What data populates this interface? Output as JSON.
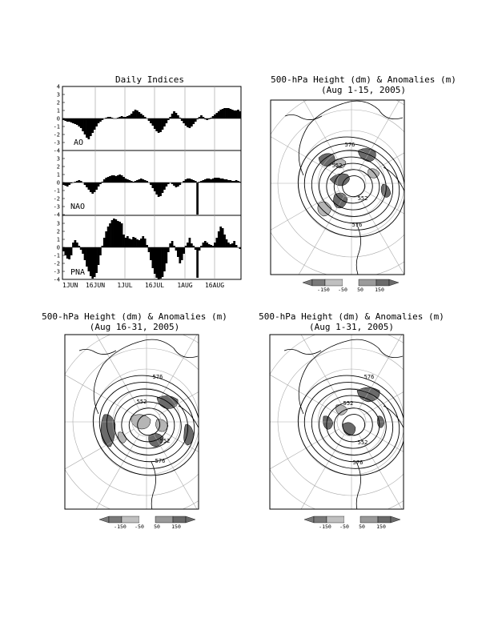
{
  "indices_panel": {
    "title": "Daily Indices",
    "y_ticks": [
      "4",
      "3",
      "2",
      "1",
      "0",
      "-1",
      "-2",
      "-3",
      "-4"
    ],
    "x_ticks": [
      "1JUN",
      "16JUN",
      "1JUL",
      "16JUL",
      "1AUG",
      "16AUG"
    ]
  },
  "maps": [
    {
      "title_line1": "500-hPa Height (dm) & Anomalies (m)",
      "title_line2": "(Aug 1-15, 2005)",
      "contour_labels": [
        "576",
        "552",
        "552",
        "576"
      ],
      "legend_labels": [
        "-150",
        "-50",
        "50",
        "150"
      ]
    },
    {
      "title_line1": "500-hPa Height (dm) & Anomalies (m)",
      "title_line2": "(Aug 16-31, 2005)",
      "contour_labels": [
        "576",
        "552",
        "552",
        "576"
      ],
      "legend_labels": [
        "-150",
        "-50",
        "50",
        "150"
      ]
    },
    {
      "title_line1": "500-hPa Height (dm) & Anomalies (m)",
      "title_line2": "(Aug 1-31, 2005)",
      "contour_labels": [
        "576",
        "552",
        "552",
        "576"
      ],
      "legend_labels": [
        "-150",
        "-50",
        "50",
        "150"
      ]
    }
  ],
  "chart_data": [
    {
      "type": "bar",
      "title": "Daily Indices",
      "series_label": "AO",
      "x_start": "1JUN",
      "x_end": "31AUG",
      "ylim": [
        -4,
        4
      ],
      "values": [
        -0.2,
        -0.3,
        -0.4,
        -0.4,
        -0.5,
        -0.6,
        -0.7,
        -0.8,
        -1.0,
        -1.2,
        -1.6,
        -2.0,
        -2.4,
        -2.6,
        -2.2,
        -1.8,
        -1.4,
        -1.0,
        -0.6,
        -0.4,
        -0.2,
        0.0,
        0.1,
        0.2,
        0.2,
        0.1,
        0.0,
        0.0,
        0.1,
        0.2,
        0.3,
        0.2,
        0.2,
        0.3,
        0.4,
        0.6,
        0.9,
        1.1,
        1.0,
        0.8,
        0.6,
        0.4,
        0.2,
        0.0,
        -0.3,
        -0.6,
        -0.9,
        -1.3,
        -1.6,
        -1.8,
        -1.7,
        -1.4,
        -1.0,
        -0.6,
        -0.2,
        0.2,
        0.6,
        0.9,
        0.7,
        0.4,
        0.1,
        -0.3,
        -0.6,
        -0.9,
        -1.1,
        -1.2,
        -1.0,
        -0.7,
        -0.4,
        -0.1,
        0.2,
        0.4,
        0.2,
        -0.1,
        -0.2,
        -0.1,
        0.1,
        0.3,
        0.5,
        0.7,
        0.9,
        1.1,
        1.2,
        1.3,
        1.3,
        1.3,
        1.2,
        1.1,
        1.0,
        1.0,
        1.1,
        0.9
      ]
    },
    {
      "type": "bar",
      "series_label": "NAO",
      "x_start": "1JUN",
      "x_end": "31AUG",
      "ylim": [
        -4,
        4
      ],
      "values": [
        -0.3,
        -0.4,
        -0.5,
        -0.3,
        -0.1,
        0.0,
        0.1,
        0.2,
        0.3,
        0.2,
        0.0,
        -0.3,
        -0.6,
        -0.9,
        -1.2,
        -1.4,
        -1.2,
        -0.9,
        -0.5,
        -0.2,
        0.1,
        0.4,
        0.6,
        0.7,
        0.8,
        0.9,
        0.9,
        0.8,
        0.9,
        1.0,
        0.9,
        0.7,
        0.5,
        0.4,
        0.3,
        0.2,
        0.1,
        0.2,
        0.3,
        0.4,
        0.5,
        0.4,
        0.3,
        0.2,
        0.0,
        -0.3,
        -0.7,
        -1.1,
        -1.5,
        -1.8,
        -1.7,
        -1.3,
        -0.9,
        -0.5,
        -0.2,
        0.0,
        -0.2,
        -0.4,
        -0.6,
        -0.5,
        -0.3,
        0.0,
        0.2,
        0.4,
        0.5,
        0.5,
        0.4,
        0.3,
        0.2,
        -4.0,
        0.1,
        0.2,
        0.3,
        0.4,
        0.5,
        0.5,
        0.4,
        0.5,
        0.6,
        0.6,
        0.6,
        0.5,
        0.5,
        0.4,
        0.4,
        0.3,
        0.3,
        0.2,
        0.2,
        0.3,
        0.2,
        0.1
      ]
    },
    {
      "type": "bar",
      "series_label": "PNA",
      "x_start": "1JUN",
      "x_end": "31AUG",
      "ylim": [
        -4,
        4
      ],
      "values": [
        -0.5,
        -1.0,
        -1.4,
        -1.5,
        -1.0,
        0.6,
        0.9,
        0.6,
        0.2,
        -0.3,
        -0.8,
        -1.6,
        -2.4,
        -3.0,
        -3.6,
        -3.9,
        -3.7,
        -3.2,
        -2.2,
        -1.0,
        0.2,
        1.2,
        2.0,
        2.6,
        3.0,
        3.4,
        3.6,
        3.5,
        3.3,
        3.2,
        3.0,
        1.6,
        1.2,
        1.4,
        1.1,
        1.0,
        1.3,
        1.2,
        1.0,
        0.9,
        1.1,
        1.4,
        1.1,
        0.3,
        -0.6,
        -1.6,
        -2.6,
        -3.3,
        -3.8,
        -4.0,
        -3.9,
        -3.7,
        -3.0,
        -2.0,
        -0.6,
        0.5,
        0.8,
        0.2,
        -0.4,
        -1.2,
        -2.0,
        -1.6,
        -0.8,
        0.2,
        0.6,
        1.2,
        0.5,
        0.2,
        -0.3,
        -3.8,
        -0.4,
        0.2,
        0.6,
        0.8,
        0.6,
        0.4,
        0.3,
        0.2,
        0.6,
        1.2,
        2.0,
        2.6,
        2.4,
        1.6,
        1.0,
        0.6,
        0.4,
        0.5,
        0.8,
        0.3,
        0.0,
        -0.2
      ]
    }
  ]
}
